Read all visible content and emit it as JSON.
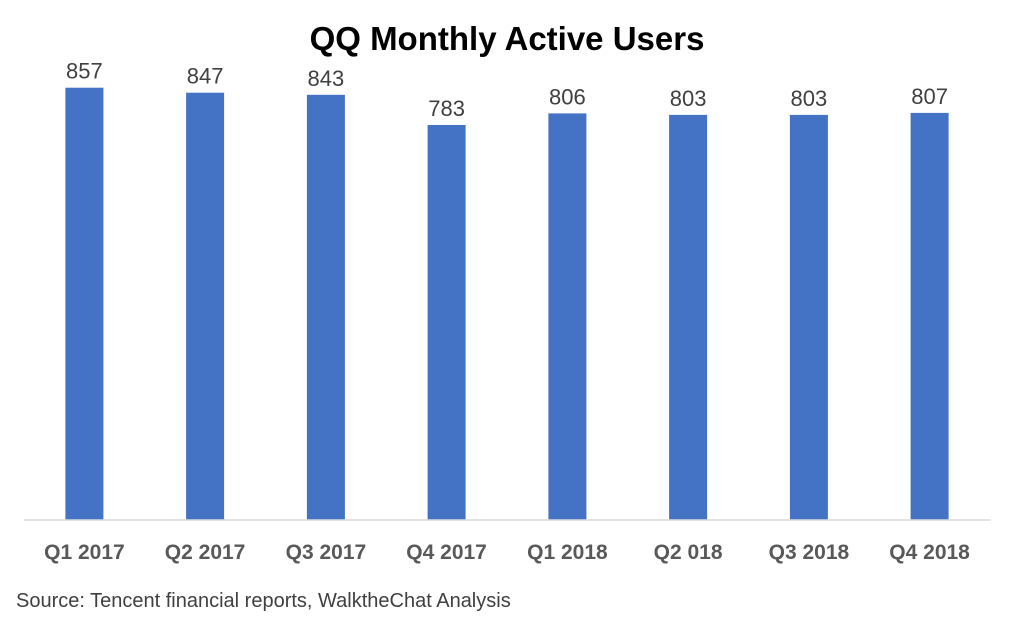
{
  "chart_data": {
    "type": "bar",
    "title": "QQ Monthly Active Users",
    "categories": [
      "Q1 2017",
      "Q2 2017",
      "Q3 2017",
      "Q4 2017",
      "Q1 2018",
      "Q2 018",
      "Q3 2018",
      "Q4 2018"
    ],
    "values": [
      857,
      847,
      843,
      783,
      806,
      803,
      803,
      807
    ],
    "ylim": [
      0,
      900
    ],
    "grid": false,
    "legend": "none",
    "bar_color": "#4472C4"
  },
  "source": "Source: Tencent financial reports, WalktheChat Analysis"
}
